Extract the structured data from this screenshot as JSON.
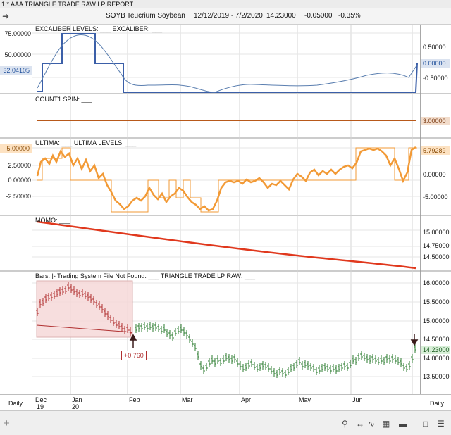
{
  "window": {
    "title": "1 * AAA  TRIANGLE TRADE RAW LP REPORT"
  },
  "info": {
    "symbol": "SOYB",
    "name": "Teucrium Soybean",
    "date_range": "12/12/2019 - 7/2/2020",
    "last": "14.23000",
    "change": "-0.05000",
    "change_pct": "-0.35%"
  },
  "panes": {
    "excaliber": {
      "title": "EXCALIBER LEVELS: ___  EXCALIBER: ___",
      "left_axis": [
        "75.00000",
        "50.00000"
      ],
      "left_tag": "32.04105",
      "right_axis": [
        "0.50000",
        "-0.50000"
      ],
      "right_tag": "0.00000"
    },
    "count1": {
      "title": "COUNT1 SPIN: ___",
      "right_tag": "3.00000"
    },
    "ultima": {
      "title": "ULTIMA: ___  ULTIMA LEVELS: ___",
      "left_tag": "5.00000",
      "left_axis": [
        "2.50000",
        "0.00000",
        "-2.50000"
      ],
      "right_tag": "5.79289",
      "right_axis": [
        "0.00000",
        "-5.00000"
      ]
    },
    "momo": {
      "title": "MOMO: ___",
      "right_axis": [
        "15.00000",
        "14.75000",
        "14.50000"
      ]
    },
    "price": {
      "title": "Bars: |-   Trading System File Not Found: ___   TRIANGLE TRADE LP RAW: ___",
      "right_axis": [
        "16.00000",
        "15.50000",
        "15.00000",
        "14.50000",
        "14.00000",
        "13.50000"
      ],
      "right_tag": "14.23000",
      "trade_label": "+0.760"
    }
  },
  "xaxis": {
    "left_label": "Daily",
    "right_label": "Daily",
    "months": [
      "Dec",
      "Jan",
      "Feb",
      "Mar",
      "Apr",
      "May",
      "Jun"
    ],
    "years": [
      "19",
      "20"
    ]
  },
  "colors": {
    "excaliber_line": "#3b5fa8",
    "excaliber_curve": "#5b7fb0",
    "count1_line": "#b8591a",
    "ultima": "#f29a36",
    "momo": "#e0381d",
    "bars": "#2e7d32",
    "bars_early": "#b03030",
    "trade_box": "#f6d9d9"
  }
}
